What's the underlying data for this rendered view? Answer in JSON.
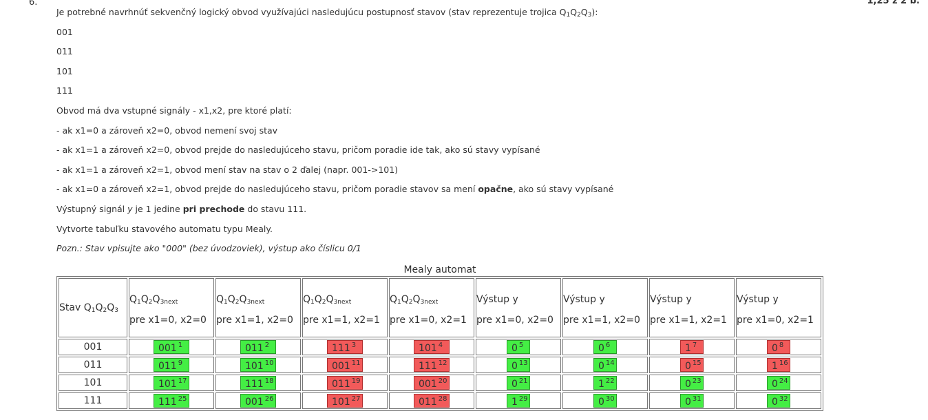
{
  "question": {
    "number": "6.",
    "points": "1,25 z 2 b.",
    "intro_text": "Je potrebné navrhnúť sekvenčný logický obvod využívajúci nasledujúcu postupnosť stavov (stav reprezentuje trojica Q",
    "intro_q1": "1",
    "intro_q_a": "Q",
    "intro_q2": "2",
    "intro_q_b": "Q",
    "intro_q3": "3",
    "intro_end": "):",
    "states": [
      "001",
      "011",
      "101",
      "111"
    ],
    "inputs_line": "Obvod má dva vstupné signály - x1,x2, pre ktoré platí:",
    "rule1": "- ak x1=0 a zároveň x2=0, obvod nemení svoj stav",
    "rule2": "- ak x1=1 a zároveň x2=0, obvod prejde do nasledujúceho stavu, pričom poradie ide tak, ako sú stavy vypísané",
    "rule3": "- ak x1=1 a zároveň x2=1, obvod mení stav na stav o 2 ďalej (napr. 001->101)",
    "rule4_a": "- ak x1=0 a zároveň x2=1, obvod prejde do nasledujúceho stavu, pričom poradie stavov sa mení ",
    "rule4_bold": "opačne",
    "rule4_b": ", ako sú stavy vypísané",
    "output_a": "Výstupný signál ",
    "output_y": "y",
    "output_b": " je 1 jedine ",
    "output_bold": "pri prechode",
    "output_c": " do stavu 111.",
    "task": "Vytvorte tabuľku stavového automatu typu Mealy.",
    "note": "Pozn.: Stav vpisujte ako \"000\" (bez úvodzoviek), výstup ako číslicu 0/1"
  },
  "table": {
    "caption": "Mealy automat",
    "state_header_text": "Stav Q",
    "sub1": "1",
    "q": "Q",
    "sub2": "2",
    "sub3": "3",
    "sub3next": "3next",
    "output_header": "Výstup y",
    "conditions": [
      "pre x1=0, x2=0",
      "pre x1=1, x2=0",
      "pre x1=1, x2=1",
      "pre x1=0, x2=1",
      "pre x1=0, x2=0",
      "pre x1=1, x2=0",
      "pre x1=1, x2=1",
      "pre x1=0, x2=1"
    ],
    "rows": [
      {
        "state": "001",
        "cells": [
          {
            "value": "001",
            "index": "1",
            "status": "correct"
          },
          {
            "value": "011",
            "index": "2",
            "status": "correct"
          },
          {
            "value": "111",
            "index": "3",
            "status": "wrong"
          },
          {
            "value": "101",
            "index": "4",
            "status": "wrong"
          },
          {
            "value": "0",
            "index": "5",
            "status": "correct"
          },
          {
            "value": "0",
            "index": "6",
            "status": "correct"
          },
          {
            "value": "1",
            "index": "7",
            "status": "wrong"
          },
          {
            "value": "0",
            "index": "8",
            "status": "wrong"
          }
        ]
      },
      {
        "state": "011",
        "cells": [
          {
            "value": "011",
            "index": "9",
            "status": "correct"
          },
          {
            "value": "101",
            "index": "10",
            "status": "correct"
          },
          {
            "value": "001",
            "index": "11",
            "status": "wrong"
          },
          {
            "value": "111",
            "index": "12",
            "status": "wrong"
          },
          {
            "value": "0",
            "index": "13",
            "status": "correct"
          },
          {
            "value": "0",
            "index": "14",
            "status": "correct"
          },
          {
            "value": "0",
            "index": "15",
            "status": "wrong"
          },
          {
            "value": "1",
            "index": "16",
            "status": "wrong"
          }
        ]
      },
      {
        "state": "101",
        "cells": [
          {
            "value": "101",
            "index": "17",
            "status": "correct"
          },
          {
            "value": "111",
            "index": "18",
            "status": "correct"
          },
          {
            "value": "011",
            "index": "19",
            "status": "wrong"
          },
          {
            "value": "001",
            "index": "20",
            "status": "wrong"
          },
          {
            "value": "0",
            "index": "21",
            "status": "correct"
          },
          {
            "value": "1",
            "index": "22",
            "status": "correct"
          },
          {
            "value": "0",
            "index": "23",
            "status": "correct"
          },
          {
            "value": "0",
            "index": "24",
            "status": "correct"
          }
        ]
      },
      {
        "state": "111",
        "cells": [
          {
            "value": "111",
            "index": "25",
            "status": "correct"
          },
          {
            "value": "001",
            "index": "26",
            "status": "correct"
          },
          {
            "value": "101",
            "index": "27",
            "status": "wrong"
          },
          {
            "value": "011",
            "index": "28",
            "status": "wrong"
          },
          {
            "value": "1",
            "index": "29",
            "status": "correct"
          },
          {
            "value": "0",
            "index": "30",
            "status": "correct"
          },
          {
            "value": "0",
            "index": "31",
            "status": "correct"
          },
          {
            "value": "0",
            "index": "32",
            "status": "correct"
          }
        ]
      }
    ]
  },
  "colors": {
    "correct": "#44ee44",
    "wrong": "#f25a5a"
  }
}
